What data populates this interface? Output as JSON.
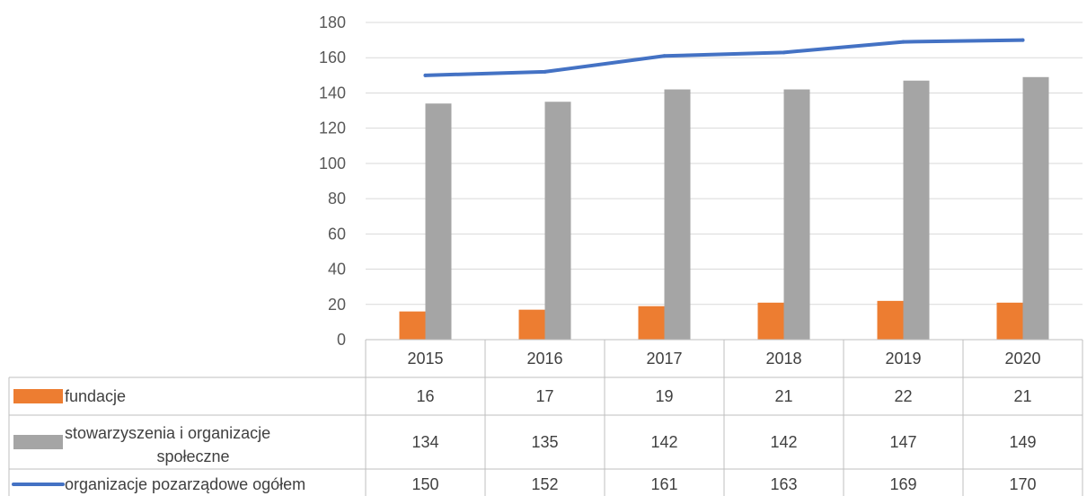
{
  "chart_data": {
    "type": "bar",
    "categories": [
      "2015",
      "2016",
      "2017",
      "2018",
      "2019",
      "2020"
    ],
    "series": [
      {
        "name": "fundacje",
        "type": "bar",
        "color": "#ED7D31",
        "values": [
          16,
          17,
          19,
          21,
          22,
          21
        ]
      },
      {
        "name": "stowarzyszenia i organizacje społeczne",
        "type": "bar",
        "color": "#A5A5A5",
        "values": [
          134,
          135,
          142,
          142,
          147,
          149
        ]
      },
      {
        "name": "organizacje pozarządowe ogółem",
        "type": "line",
        "color": "#4472C4",
        "values": [
          150,
          152,
          161,
          163,
          169,
          170
        ]
      }
    ],
    "ylim": [
      0,
      180
    ],
    "yticks": [
      "0",
      "20",
      "40",
      "60",
      "80",
      "100",
      "120",
      "140",
      "160",
      "180"
    ],
    "grid": true,
    "data_table": true,
    "legend_rows": [
      [
        "fundacje"
      ],
      [
        "stowarzyszenia i organizacje",
        "społeczne"
      ],
      [
        "organizacje pozarządowe ogółem"
      ]
    ]
  }
}
